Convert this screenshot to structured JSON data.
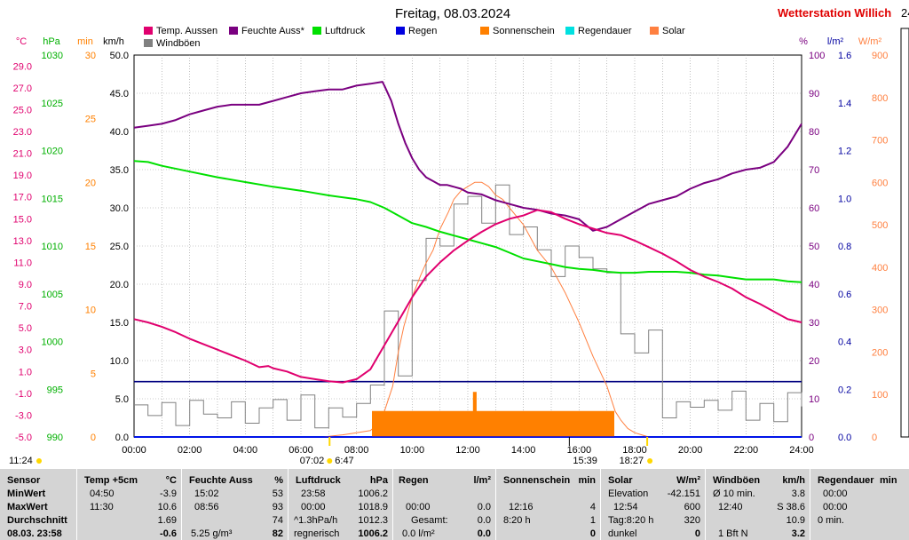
{
  "station": "Wetterstation Willich",
  "station_extra": "24",
  "chart_data": {
    "type": "line",
    "title": "Freitag, 08.03.2024",
    "x_ticks": [
      "00:00",
      "02:00",
      "04:00",
      "06:00",
      "08:00",
      "10:00",
      "12:00",
      "14:00",
      "16:00",
      "18:00",
      "20:00",
      "22:00",
      "24:00"
    ],
    "xlim": [
      0,
      24
    ],
    "legend": [
      {
        "name": "Temp. Aussen",
        "color": "#e0006e"
      },
      {
        "name": "Feuchte Auss*",
        "color": "#7a0080"
      },
      {
        "name": "Luftdruck",
        "color": "#00e000"
      },
      {
        "name": "Regen",
        "color": "#0000e0"
      },
      {
        "name": "Sonnenschein",
        "color": "#ff8000"
      },
      {
        "name": "Regendauer",
        "color": "#00e0e0"
      },
      {
        "name": "Solar",
        "color": "#ff8040"
      },
      {
        "name": "Windböen",
        "color": "#808080"
      }
    ],
    "axes": {
      "temp": {
        "unit": "°C",
        "color": "#e0006e",
        "min": -5,
        "max": 30,
        "ticks": [
          "29.0",
          "27.0",
          "25.0",
          "23.0",
          "21.0",
          "19.0",
          "17.0",
          "15.0",
          "13.0",
          "11.0",
          "9.0",
          "7.0",
          "5.0",
          "3.0",
          "1.0",
          "-1.0",
          "-3.0",
          "-5.0"
        ]
      },
      "pressure": {
        "unit": "hPa",
        "color": "#00b000",
        "min": 990,
        "max": 1030,
        "ticks": [
          "1030",
          "1025",
          "1020",
          "1015",
          "1010",
          "1005",
          "1000",
          "995",
          "990"
        ]
      },
      "sunshine": {
        "unit": "min",
        "color": "#ff8000",
        "min": 0,
        "max": 30,
        "ticks": [
          "30",
          "25",
          "20",
          "15",
          "10",
          "5",
          "0"
        ]
      },
      "wind": {
        "unit": "km/h",
        "color": "#000000",
        "min": 0,
        "max": 50,
        "ticks": [
          "50.0",
          "45.0",
          "40.0",
          "35.0",
          "30.0",
          "25.0",
          "20.0",
          "15.0",
          "10.0",
          "5.0",
          "0.0"
        ]
      },
      "humidity": {
        "unit": "%",
        "color": "#7a0080",
        "min": 0,
        "max": 100,
        "ticks": [
          "100",
          "90",
          "80",
          "70",
          "60",
          "50",
          "40",
          "30",
          "20",
          "10",
          "0"
        ]
      },
      "rain": {
        "unit": "l/m²",
        "color": "#0000a0",
        "min": 0,
        "max": 1.6,
        "ticks": [
          "1.6",
          "1.4",
          "1.2",
          "1.0",
          "0.8",
          "0.6",
          "0.4",
          "0.2",
          "0.0"
        ]
      },
      "solar": {
        "unit": "W/m²",
        "color": "#ff8040",
        "min": 0,
        "max": 900,
        "ticks": [
          "900",
          "800",
          "700",
          "600",
          "500",
          "400",
          "300",
          "200",
          "100",
          "0"
        ]
      }
    },
    "series": [
      {
        "name": "Feuchte Auss*",
        "axis": "humidity",
        "x": [
          0,
          0.5,
          1,
          1.5,
          2,
          2.5,
          3,
          3.5,
          4,
          4.5,
          5,
          5.5,
          6,
          6.5,
          7,
          7.5,
          8,
          8.5,
          8.93,
          9,
          9.25,
          9.5,
          9.75,
          10,
          10.25,
          10.5,
          10.75,
          11,
          11.25,
          11.5,
          11.75,
          12,
          12.5,
          13,
          13.5,
          14,
          14.5,
          15,
          15.5,
          16,
          16.5,
          17,
          17.5,
          18,
          18.5,
          19,
          19.5,
          20,
          20.5,
          21,
          21.5,
          22,
          22.5,
          23,
          23.5,
          24
        ],
        "y": [
          81,
          81.5,
          82,
          83,
          84.5,
          85.5,
          86.5,
          87,
          87,
          87,
          88,
          89,
          90,
          90.5,
          91,
          91,
          92,
          92.5,
          93,
          92,
          88,
          82,
          77,
          73,
          70,
          68,
          67,
          66,
          66,
          65.5,
          65,
          64,
          63.5,
          62,
          61,
          60,
          59.5,
          58.5,
          58,
          57,
          54,
          55,
          57,
          59,
          61,
          62,
          63,
          65,
          66.5,
          67.5,
          69,
          70,
          70.5,
          72,
          76,
          82
        ]
      },
      {
        "name": "Luftdruck",
        "axis": "pressure",
        "x": [
          0,
          0.5,
          1,
          2,
          3,
          4,
          5,
          6,
          7,
          8,
          8.5,
          9,
          9.5,
          10,
          10.5,
          11,
          11.5,
          12,
          12.5,
          13,
          13.5,
          14,
          14.5,
          15,
          15.5,
          16,
          16.5,
          17,
          17.5,
          18,
          18.5,
          19,
          19.5,
          20,
          20.5,
          21,
          21.5,
          22,
          22.5,
          23,
          23.5,
          24
        ],
        "y": [
          1018.9,
          1018.8,
          1018.4,
          1017.8,
          1017.2,
          1016.7,
          1016.2,
          1015.8,
          1015.3,
          1014.9,
          1014.6,
          1014.0,
          1013.2,
          1012.4,
          1012.0,
          1011.5,
          1011.1,
          1010.7,
          1010.3,
          1009.9,
          1009.3,
          1008.7,
          1008.4,
          1008.1,
          1007.8,
          1007.6,
          1007.5,
          1007.3,
          1007.2,
          1007.2,
          1007.3,
          1007.3,
          1007.3,
          1007.2,
          1007.0,
          1006.9,
          1006.7,
          1006.5,
          1006.5,
          1006.5,
          1006.3,
          1006.2
        ]
      },
      {
        "name": "Temp. Aussen",
        "axis": "temp",
        "x": [
          0,
          0.5,
          1,
          1.5,
          2,
          2.5,
          3,
          3.5,
          4,
          4.5,
          4.83,
          5,
          5.5,
          6,
          6.5,
          7,
          7.5,
          8,
          8.5,
          9,
          9.5,
          10,
          10.5,
          11,
          11.5,
          12,
          12.5,
          13,
          13.5,
          14,
          14.5,
          15,
          15.5,
          16,
          16.5,
          17,
          17.5,
          18,
          18.5,
          19,
          19.5,
          20,
          20.5,
          21,
          21.5,
          22,
          22.5,
          23,
          23.5,
          24
        ],
        "y": [
          5.8,
          5.5,
          5.1,
          4.6,
          4.0,
          3.5,
          3.0,
          2.5,
          2.0,
          1.4,
          1.5,
          1.3,
          1.0,
          0.5,
          0.3,
          0.1,
          0.0,
          0.3,
          1.2,
          3.4,
          5.6,
          7.8,
          9.7,
          11.0,
          12.1,
          13.0,
          13.8,
          14.5,
          15.0,
          15.3,
          15.8,
          15.6,
          15.0,
          14.5,
          14.1,
          13.7,
          13.5,
          13.0,
          12.4,
          11.8,
          11.1,
          10.3,
          9.7,
          9.2,
          8.6,
          7.8,
          7.2,
          6.5,
          5.8,
          5.5
        ]
      },
      {
        "name": "Regen",
        "axis": "rain",
        "x": [
          0,
          24
        ],
        "y": [
          0.0,
          0.0
        ]
      },
      {
        "name": "Sonnenschein",
        "axis": "sunshine",
        "x": [
          8.57,
          8.57,
          12.2,
          12.2,
          12.3,
          12.3,
          17.25,
          17.25
        ],
        "y": [
          0,
          2,
          2,
          3.5,
          3.5,
          2,
          2,
          0
        ]
      },
      {
        "name": "Solar",
        "axis": "solar",
        "x": [
          6.8,
          7.5,
          8,
          8.5,
          8.75,
          9,
          9.3,
          9.5,
          9.7,
          10,
          10.3,
          10.5,
          10.75,
          11,
          11.3,
          11.5,
          11.75,
          12,
          12.25,
          12.5,
          12.75,
          13,
          13.25,
          13.5,
          13.75,
          14,
          14.25,
          14.5,
          15,
          15.5,
          16,
          16.5,
          17,
          17.3,
          17.5,
          17.75,
          18,
          18.25,
          18.5
        ],
        "y": [
          0,
          5,
          10,
          15,
          30,
          60,
          120,
          200,
          260,
          330,
          380,
          410,
          440,
          490,
          530,
          560,
          580,
          590,
          600,
          600,
          590,
          570,
          560,
          540,
          520,
          500,
          470,
          440,
          400,
          340,
          270,
          190,
          120,
          60,
          40,
          20,
          10,
          5,
          0
        ]
      },
      {
        "name": "Windböen",
        "axis": "wind",
        "x": [
          0,
          0.5,
          1,
          1.5,
          2,
          2.5,
          3,
          3.5,
          4,
          4.5,
          5,
          5.5,
          6,
          6.5,
          7,
          7.5,
          8,
          8.5,
          9,
          9.5,
          10,
          10.5,
          11,
          11.5,
          12,
          12.5,
          13,
          13.5,
          14,
          14.5,
          15,
          15.5,
          16,
          16.5,
          17,
          17.5,
          18,
          18.5,
          19,
          19.5,
          20,
          20.5,
          21,
          21.5,
          22,
          22.5,
          23,
          23.5,
          24
        ],
        "y": [
          4.2,
          2.8,
          4.5,
          1.5,
          4.8,
          3.0,
          2.5,
          4.6,
          1.8,
          3.8,
          4.9,
          2.2,
          5.5,
          1.2,
          3.8,
          2.6,
          4.4,
          6.8,
          16.5,
          8.0,
          20.5,
          26.0,
          25.0,
          30.5,
          31.5,
          28.0,
          33.0,
          26.5,
          27.5,
          24.5,
          21.0,
          25.0,
          23.5,
          22.0,
          21.5,
          13.5,
          11.0,
          14.0,
          2.5,
          4.6,
          3.9,
          4.8,
          3.5,
          6.0,
          2.2,
          4.4,
          2.0,
          5.8,
          4.0
        ]
      }
    ],
    "markers": {
      "left_time": "11:24",
      "sunrise": "07:02",
      "sunrise2": "6:47",
      "sunset_label": "15:39",
      "sunset": "18:27"
    },
    "level_lines": [
      {
        "axis": "rain",
        "value": 0.0
      },
      {
        "axis": "humidity",
        "value": 14.5
      }
    ]
  },
  "table": {
    "sensor": {
      "header": "Sensor",
      "rows": [
        "MinWert",
        "MaxWert",
        "Durchschnitt",
        "08.03. 23:58"
      ]
    },
    "temp": {
      "header": "Temp +5cm",
      "unit": "°C",
      "rows": [
        [
          "04:50",
          "-3.9"
        ],
        [
          "11:30",
          "10.6"
        ],
        [
          "",
          "1.69"
        ],
        [
          "",
          "-0.6"
        ]
      ]
    },
    "feuchte": {
      "header": "Feuchte Auss",
      "unit": "%",
      "rows": [
        [
          "15:02",
          "53"
        ],
        [
          "08:56",
          "93"
        ],
        [
          "",
          "74"
        ],
        [
          "5.25 g/m³",
          "82"
        ]
      ]
    },
    "luftdruck": {
      "header": "Luftdruck",
      "unit": "hPa",
      "rows": [
        [
          "23:58",
          "1006.2"
        ],
        [
          "00:00",
          "1018.9"
        ],
        [
          "^1.3hPa/h",
          "1012.3"
        ],
        [
          "regnerisch",
          "1006.2"
        ]
      ]
    },
    "regen": {
      "header": "Regen",
      "unit": "l/m²",
      "rows": [
        [
          "",
          ""
        ],
        [
          "00:00",
          "0.0"
        ],
        [
          "Gesamt:",
          "0.0"
        ],
        [
          "0.0 l/m²",
          "0.0"
        ]
      ]
    },
    "sonne": {
      "header": "Sonnenschein",
      "unit": "min",
      "rows": [
        [
          "",
          ""
        ],
        [
          "12:16",
          "4"
        ],
        [
          "8:20 h",
          "1"
        ],
        [
          "",
          "0"
        ]
      ]
    },
    "solar": {
      "header": "Solar",
      "unit": "W/m²",
      "rows": [
        [
          "Elevation",
          "-42.151"
        ],
        [
          "12:54",
          "600"
        ],
        [
          "Tag:8:20 h",
          "320"
        ],
        [
          "dunkel",
          "0"
        ]
      ]
    },
    "wind": {
      "header": "Windböen",
      "unit": "km/h",
      "rows": [
        [
          "Ø 10 min.",
          "3.8"
        ],
        [
          "12:40",
          "S 38.6"
        ],
        [
          "",
          "10.9"
        ],
        [
          "1 Bft N",
          "3.2"
        ]
      ]
    },
    "regendauer": {
      "header": "Regendauer",
      "unit": "min",
      "rows": [
        [
          "00:00",
          ""
        ],
        [
          "00:00",
          ""
        ],
        [
          "0 min.",
          ""
        ],
        [
          "",
          ""
        ]
      ]
    }
  }
}
